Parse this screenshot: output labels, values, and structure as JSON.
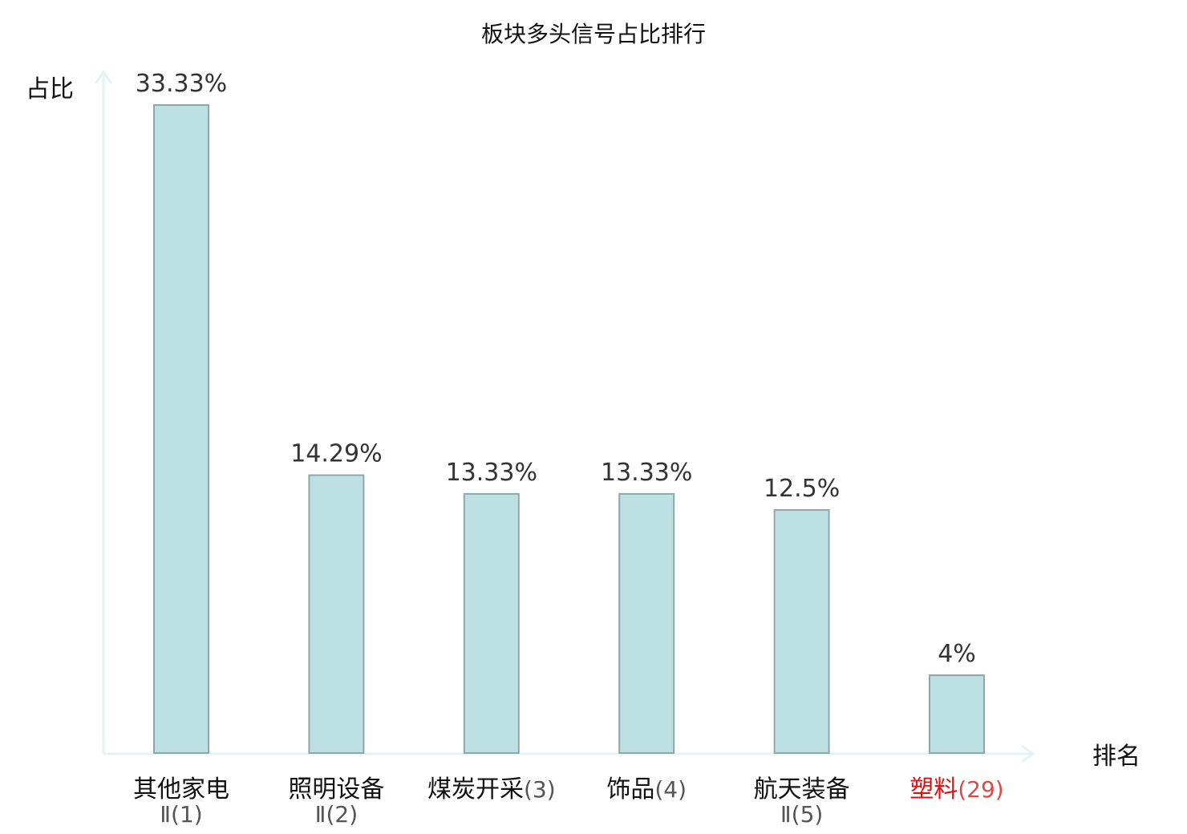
{
  "chart_data": {
    "type": "bar",
    "title": "板块多头信号占比排行",
    "ylabel": "占比",
    "xlabel": "排名",
    "ylim": [
      0,
      33.33
    ],
    "grid": false,
    "categories": [
      {
        "name": "其他家电",
        "rank": "Ⅱ(1)",
        "highlight": false
      },
      {
        "name": "照明设备",
        "rank": "Ⅱ(2)",
        "highlight": false
      },
      {
        "name": "煤炭开采",
        "rank": "(3)",
        "highlight": false
      },
      {
        "name": "饰品",
        "rank": "(4)",
        "highlight": false
      },
      {
        "name": "航天装备",
        "rank": "Ⅱ(5)",
        "highlight": false
      },
      {
        "name": "塑料",
        "rank": "(29)",
        "highlight": true
      }
    ],
    "values": [
      33.33,
      14.29,
      13.33,
      13.33,
      12.5,
      4
    ],
    "value_labels": [
      "33.33%",
      "14.29%",
      "13.33%",
      "13.33%",
      "12.5%",
      "4%"
    ],
    "colors": {
      "bar_fill": "#bde0e3",
      "bar_stroke": "#8fa7a9",
      "axis": "#e3f3f1",
      "label_text": "#333333",
      "category_text": "#111111",
      "highlight_name": "#e01010",
      "highlight_rank": "#e04848",
      "rank_text": "#555555"
    }
  }
}
